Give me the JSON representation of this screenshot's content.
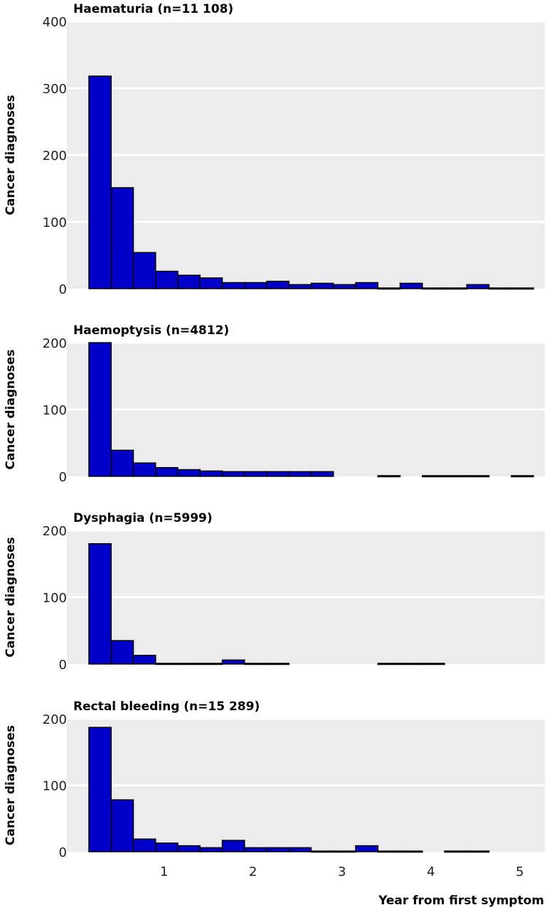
{
  "figure": {
    "xlabel": "Year from first symptom",
    "bin_width_years": 0.25,
    "x_range": [
      0,
      5.25
    ],
    "x_ticks": [
      1,
      2,
      3,
      4,
      5
    ],
    "colors": {
      "bar_fill": "#0000c8",
      "bar_stroke": "#000000",
      "plot_bg": "#ececec",
      "grid": "#ffffff"
    }
  },
  "chart_data": [
    {
      "type": "bar",
      "title": "Haematuria (n=11 108)",
      "ylabel": "Cancer diagnoses",
      "ylim": [
        0,
        400
      ],
      "yticks": [
        0,
        100,
        200,
        300,
        400
      ],
      "bin_starts": [
        0,
        0.25,
        0.5,
        0.75,
        1,
        1.25,
        1.5,
        1.75,
        2,
        2.25,
        2.5,
        2.75,
        3,
        3.25,
        3.5,
        3.75,
        4,
        4.25,
        4.5,
        4.75
      ],
      "values": [
        318,
        151,
        54,
        26,
        20,
        16,
        9,
        9,
        11,
        6,
        8,
        6,
        9,
        1,
        8,
        1,
        1,
        6,
        1,
        1
      ]
    },
    {
      "type": "bar",
      "title": "Haemoptysis (n=4812)",
      "ylabel": "Cancer diagnoses",
      "ylim": [
        0,
        200
      ],
      "yticks": [
        0,
        100,
        200
      ],
      "bin_starts": [
        0,
        0.25,
        0.5,
        0.75,
        1,
        1.25,
        1.5,
        1.75,
        2,
        2.25,
        2.5,
        2.75,
        3,
        3.25,
        3.5,
        3.75,
        4,
        4.25,
        4.5,
        4.75
      ],
      "values": [
        200,
        39,
        20,
        13,
        10,
        8,
        7,
        7,
        7,
        7,
        7,
        0,
        0,
        1,
        0,
        1,
        1,
        1,
        0,
        1
      ]
    },
    {
      "type": "bar",
      "title": "Dysphagia (n=5999)",
      "ylabel": "Cancer diagnoses",
      "ylim": [
        0,
        200
      ],
      "yticks": [
        0,
        100,
        200
      ],
      "bin_starts": [
        0,
        0.25,
        0.5,
        0.75,
        1,
        1.25,
        1.5,
        1.75,
        2,
        2.25,
        2.5,
        2.75,
        3,
        3.25,
        3.5,
        3.75,
        4,
        4.25,
        4.5,
        4.75
      ],
      "values": [
        180,
        35,
        13,
        1,
        1,
        1,
        6,
        1,
        1,
        0,
        0,
        0,
        0,
        1,
        1,
        1,
        0,
        0,
        0,
        0
      ]
    },
    {
      "type": "bar",
      "title": "Rectal bleeding (n=15 289)",
      "ylabel": "Cancer diagnoses",
      "ylim": [
        0,
        200
      ],
      "yticks": [
        0,
        100,
        200
      ],
      "bin_starts": [
        0,
        0.25,
        0.5,
        0.75,
        1,
        1.25,
        1.5,
        1.75,
        2,
        2.25,
        2.5,
        2.75,
        3,
        3.25,
        3.5,
        3.75,
        4,
        4.25,
        4.5,
        4.75
      ],
      "values": [
        187,
        78,
        19,
        13,
        9,
        6,
        17,
        6,
        6,
        6,
        1,
        1,
        9,
        1,
        1,
        0,
        1,
        1,
        0,
        0
      ]
    }
  ]
}
